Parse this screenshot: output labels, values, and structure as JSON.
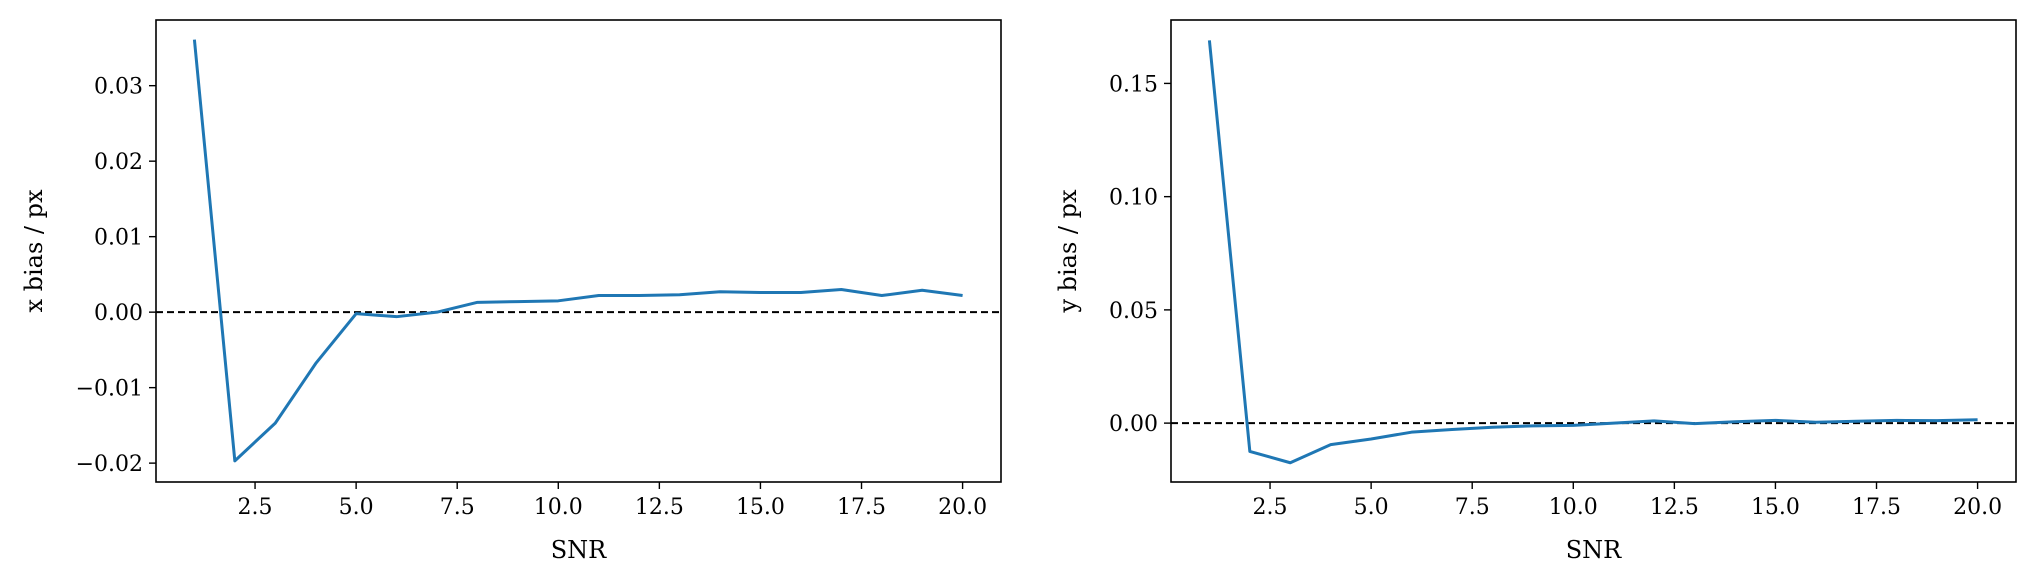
{
  "colors": {
    "line": "#1f77b4",
    "zero_line": "#000000",
    "frame": "#000000"
  },
  "chart_data": [
    {
      "type": "line",
      "xlabel": "SNR",
      "ylabel": "x bias / px",
      "xlim": [
        0.05,
        20.95
      ],
      "ylim": [
        -0.0225,
        0.0387
      ],
      "xticks": [
        2.5,
        5.0,
        7.5,
        10.0,
        12.5,
        15.0,
        17.5,
        20.0
      ],
      "xtick_labels": [
        "2.5",
        "5.0",
        "7.5",
        "10.0",
        "12.5",
        "15.0",
        "17.5",
        "20.0"
      ],
      "yticks": [
        -0.02,
        -0.01,
        0.0,
        0.01,
        0.02,
        0.03
      ],
      "ytick_labels": [
        "−0.02",
        "−0.01",
        "0.00",
        "0.01",
        "0.02",
        "0.03"
      ],
      "reference_line": {
        "y": 0.0,
        "style": "dashed"
      },
      "grid": false,
      "x": [
        1,
        2,
        3,
        4,
        5,
        6,
        7,
        8,
        9,
        10,
        11,
        12,
        13,
        14,
        15,
        16,
        17,
        18,
        19,
        20
      ],
      "y": [
        0.0361,
        -0.0197,
        -0.0147,
        -0.0068,
        -0.0002,
        -0.0006,
        0.0,
        0.0013,
        0.0014,
        0.0015,
        0.0022,
        0.0022,
        0.0023,
        0.0027,
        0.0026,
        0.0026,
        0.003,
        0.0022,
        0.0029,
        0.0022
      ]
    },
    {
      "type": "line",
      "xlabel": "SNR",
      "ylabel": "y bias / px",
      "xlim": [
        0.05,
        20.95
      ],
      "ylim": [
        -0.026,
        0.178
      ],
      "xticks": [
        2.5,
        5.0,
        7.5,
        10.0,
        12.5,
        15.0,
        17.5,
        20.0
      ],
      "xtick_labels": [
        "2.5",
        "5.0",
        "7.5",
        "10.0",
        "12.5",
        "15.0",
        "17.5",
        "20.0"
      ],
      "yticks": [
        0.0,
        0.05,
        0.1,
        0.15
      ],
      "ytick_labels": [
        "0.00",
        "0.05",
        "0.10",
        "0.15"
      ],
      "reference_line": {
        "y": 0.0,
        "style": "dashed"
      },
      "grid": false,
      "x": [
        1,
        2,
        3,
        4,
        5,
        6,
        7,
        8,
        9,
        10,
        11,
        12,
        13,
        14,
        15,
        16,
        17,
        18,
        19,
        20
      ],
      "y": [
        0.169,
        -0.0125,
        -0.0175,
        -0.0095,
        -0.007,
        -0.004,
        -0.0028,
        -0.0018,
        -0.0012,
        -0.001,
        0.0,
        0.001,
        -0.0002,
        0.0006,
        0.0012,
        0.0004,
        0.0008,
        0.0012,
        0.0011,
        0.0015
      ]
    }
  ]
}
